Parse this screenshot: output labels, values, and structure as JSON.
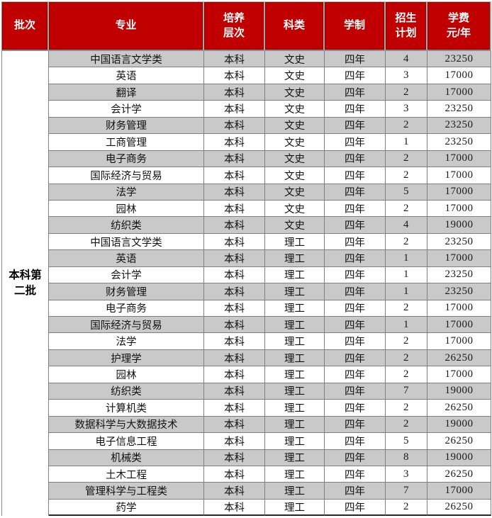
{
  "table": {
    "header": {
      "batch": "批次",
      "major": "专业",
      "level": "培养\n层次",
      "category": "科类",
      "duration": "学制",
      "plan": "招生\n计划",
      "tuition": "学费\n元/年"
    },
    "batch_label": "本科第二批",
    "rows": [
      {
        "major": "中国语言文学类",
        "level": "本科",
        "category": "文史",
        "duration": "四年",
        "plan": "4",
        "tuition": "23250"
      },
      {
        "major": "英语",
        "level": "本科",
        "category": "文史",
        "duration": "四年",
        "plan": "3",
        "tuition": "17000"
      },
      {
        "major": "翻译",
        "level": "本科",
        "category": "文史",
        "duration": "四年",
        "plan": "2",
        "tuition": "17000"
      },
      {
        "major": "会计学",
        "level": "本科",
        "category": "文史",
        "duration": "四年",
        "plan": "3",
        "tuition": "23250"
      },
      {
        "major": "财务管理",
        "level": "本科",
        "category": "文史",
        "duration": "四年",
        "plan": "2",
        "tuition": "23250"
      },
      {
        "major": "工商管理",
        "level": "本科",
        "category": "文史",
        "duration": "四年",
        "plan": "1",
        "tuition": "23250"
      },
      {
        "major": "电子商务",
        "level": "本科",
        "category": "文史",
        "duration": "四年",
        "plan": "2",
        "tuition": "17000"
      },
      {
        "major": "国际经济与贸易",
        "level": "本科",
        "category": "文史",
        "duration": "四年",
        "plan": "2",
        "tuition": "17000"
      },
      {
        "major": "法学",
        "level": "本科",
        "category": "文史",
        "duration": "四年",
        "plan": "5",
        "tuition": "17000"
      },
      {
        "major": "园林",
        "level": "本科",
        "category": "文史",
        "duration": "四年",
        "plan": "2",
        "tuition": "17000"
      },
      {
        "major": "纺织类",
        "level": "本科",
        "category": "文史",
        "duration": "四年",
        "plan": "4",
        "tuition": "19000"
      },
      {
        "major": "中国语言文学类",
        "level": "本科",
        "category": "理工",
        "duration": "四年",
        "plan": "2",
        "tuition": "23250"
      },
      {
        "major": "英语",
        "level": "本科",
        "category": "理工",
        "duration": "四年",
        "plan": "1",
        "tuition": "17000"
      },
      {
        "major": "会计学",
        "level": "本科",
        "category": "理工",
        "duration": "四年",
        "plan": "1",
        "tuition": "23250"
      },
      {
        "major": "财务管理",
        "level": "本科",
        "category": "理工",
        "duration": "四年",
        "plan": "1",
        "tuition": "23250"
      },
      {
        "major": "电子商务",
        "level": "本科",
        "category": "理工",
        "duration": "四年",
        "plan": "2",
        "tuition": "17000"
      },
      {
        "major": "国际经济与贸易",
        "level": "本科",
        "category": "理工",
        "duration": "四年",
        "plan": "1",
        "tuition": "17000"
      },
      {
        "major": "法学",
        "level": "本科",
        "category": "理工",
        "duration": "四年",
        "plan": "2",
        "tuition": "17000"
      },
      {
        "major": "护理学",
        "level": "本科",
        "category": "理工",
        "duration": "四年",
        "plan": "2",
        "tuition": "26250"
      },
      {
        "major": "园林",
        "level": "本科",
        "category": "理工",
        "duration": "四年",
        "plan": "2",
        "tuition": "17000"
      },
      {
        "major": "纺织类",
        "level": "本科",
        "category": "理工",
        "duration": "四年",
        "plan": "7",
        "tuition": "19000"
      },
      {
        "major": "计算机类",
        "level": "本科",
        "category": "理工",
        "duration": "四年",
        "plan": "2",
        "tuition": "26250"
      },
      {
        "major": "数据科学与大数据技术",
        "level": "本科",
        "category": "理工",
        "duration": "四年",
        "plan": "2",
        "tuition": "19000"
      },
      {
        "major": "电子信息工程",
        "level": "本科",
        "category": "理工",
        "duration": "四年",
        "plan": "5",
        "tuition": "26250"
      },
      {
        "major": "机械类",
        "level": "本科",
        "category": "理工",
        "duration": "四年",
        "plan": "8",
        "tuition": "19000"
      },
      {
        "major": "土木工程",
        "level": "本科",
        "category": "理工",
        "duration": "四年",
        "plan": "3",
        "tuition": "26250"
      },
      {
        "major": "管理科学与工程类",
        "level": "本科",
        "category": "理工",
        "duration": "四年",
        "plan": "7",
        "tuition": "17000"
      },
      {
        "major": "药学",
        "level": "本科",
        "category": "理工",
        "duration": "四年",
        "plan": "2",
        "tuition": "26250"
      }
    ]
  },
  "colors": {
    "header_bg": "#C00000",
    "header_text": "#FFFFFF",
    "row_alt_bg": "#C9C9C9",
    "grid_line": "#808080"
  }
}
